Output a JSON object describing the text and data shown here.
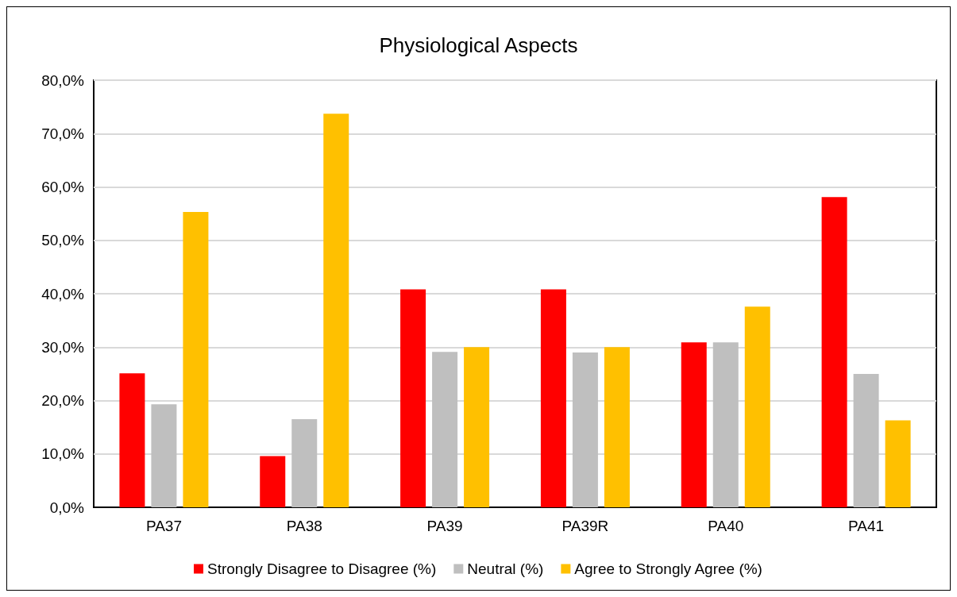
{
  "chart_data": {
    "type": "bar",
    "title": "Physiological Aspects",
    "categories": [
      "PA37",
      "PA38",
      "PA39",
      "PA39R",
      "PA40",
      "PA41"
    ],
    "series": [
      {
        "name": "Strongly Disagree to Disagree (%)",
        "color": "#ff0000",
        "values": [
          25.1,
          9.6,
          40.8,
          40.8,
          30.9,
          58.1
        ]
      },
      {
        "name": "Neutral (%)",
        "color": "#bfbfbf",
        "values": [
          19.3,
          16.5,
          29.1,
          29.0,
          30.9,
          25.0
        ]
      },
      {
        "name": "Agree to Strongly Agree (%)",
        "color": "#ffc000",
        "values": [
          55.3,
          73.7,
          30.0,
          30.0,
          37.6,
          16.3
        ]
      }
    ],
    "ylim": [
      0,
      80
    ],
    "yticks": [
      {
        "value": 0,
        "label": "0,0%"
      },
      {
        "value": 10,
        "label": "10,0%"
      },
      {
        "value": 20,
        "label": "20,0%"
      },
      {
        "value": 30,
        "label": "30,0%"
      },
      {
        "value": 40,
        "label": "40,0%"
      },
      {
        "value": 50,
        "label": "50,0%"
      },
      {
        "value": 60,
        "label": "60,0%"
      },
      {
        "value": 70,
        "label": "70,0%"
      },
      {
        "value": 80,
        "label": "80,0%"
      }
    ],
    "grid": "y",
    "legend": "bottom"
  }
}
